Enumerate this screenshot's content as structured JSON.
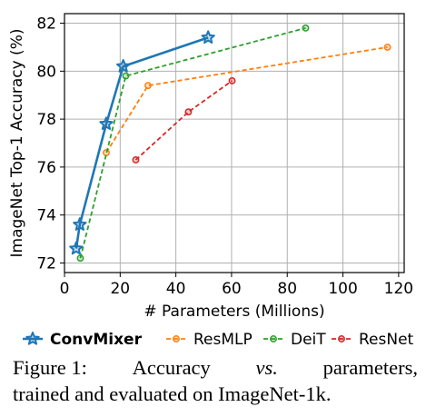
{
  "chart_data": {
    "type": "line",
    "xlabel": "# Parameters (Millions)",
    "ylabel": "ImageNet Top-1 Accuracy (%)",
    "xlim": [
      0,
      122
    ],
    "ylim": [
      71.6,
      82.4
    ],
    "xticks": [
      0,
      20,
      40,
      60,
      80,
      100,
      120
    ],
    "yticks": [
      72,
      74,
      76,
      78,
      80,
      82
    ],
    "grid": true,
    "legend_position": "bottom",
    "series": [
      {
        "name": "ConvMixer",
        "color": "#1f77b4",
        "marker": "star",
        "line_style": "solid",
        "x": [
          4.2,
          5.5,
          15.0,
          21.1,
          51.6
        ],
        "y": [
          72.6,
          73.6,
          77.8,
          80.2,
          81.4
        ]
      },
      {
        "name": "ResMLP",
        "color": "#ff7f0e",
        "marker": "circle",
        "line_style": "dashed",
        "x": [
          15.0,
          30.0,
          116.0
        ],
        "y": [
          76.6,
          79.4,
          81.0
        ]
      },
      {
        "name": "DeiT",
        "color": "#2ca02c",
        "marker": "circle",
        "line_style": "dashed",
        "x": [
          5.7,
          22.0,
          86.6
        ],
        "y": [
          72.2,
          79.8,
          81.8
        ]
      },
      {
        "name": "ResNet",
        "color": "#d62728",
        "marker": "circle",
        "line_style": "dashed",
        "x": [
          25.6,
          44.5,
          60.2
        ],
        "y": [
          76.3,
          78.3,
          79.6
        ]
      }
    ]
  },
  "caption": {
    "label": "Figure 1:",
    "part1": "Accuracy",
    "vs": "vs.",
    "part2": "parameters,",
    "line2": "trained and evaluated on ImageNet-1k."
  }
}
